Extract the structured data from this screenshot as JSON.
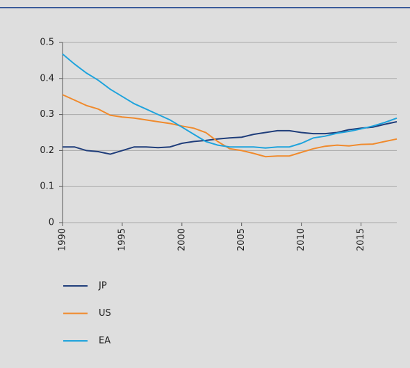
{
  "chart_data": {
    "type": "line",
    "x": [
      1990,
      1991,
      1992,
      1993,
      1994,
      1995,
      1996,
      1997,
      1998,
      1999,
      2000,
      2001,
      2002,
      2003,
      2004,
      2005,
      2006,
      2007,
      2008,
      2009,
      2010,
      2011,
      2012,
      2013,
      2014,
      2015,
      2016,
      2017,
      2018
    ],
    "series": [
      {
        "name": "JP",
        "color": "#1f3d7a",
        "values": [
          0.21,
          0.21,
          0.2,
          0.197,
          0.19,
          0.2,
          0.21,
          0.21,
          0.208,
          0.21,
          0.22,
          0.225,
          0.228,
          0.232,
          0.235,
          0.237,
          0.245,
          0.25,
          0.255,
          0.255,
          0.25,
          0.247,
          0.247,
          0.25,
          0.258,
          0.262,
          0.265,
          0.273,
          0.28
        ]
      },
      {
        "name": "US",
        "color": "#f08a2c",
        "values": [
          0.355,
          0.34,
          0.325,
          0.315,
          0.298,
          0.293,
          0.29,
          0.285,
          0.28,
          0.275,
          0.268,
          0.262,
          0.25,
          0.225,
          0.205,
          0.2,
          0.192,
          0.183,
          0.185,
          0.185,
          0.195,
          0.205,
          0.212,
          0.215,
          0.213,
          0.217,
          0.218,
          0.225,
          0.232
        ]
      },
      {
        "name": "EA",
        "color": "#1fa3dc",
        "values": [
          0.468,
          0.44,
          0.415,
          0.395,
          0.37,
          0.35,
          0.33,
          0.315,
          0.3,
          0.285,
          0.265,
          0.245,
          0.225,
          0.215,
          0.21,
          0.21,
          0.21,
          0.207,
          0.21,
          0.21,
          0.22,
          0.235,
          0.24,
          0.248,
          0.253,
          0.26,
          0.268,
          0.278,
          0.29
        ]
      }
    ],
    "xlim": [
      1990,
      2018
    ],
    "xticks": [
      1990,
      1995,
      2000,
      2005,
      2010,
      2015
    ],
    "ylim": [
      0,
      0.5
    ],
    "yticks": [
      0,
      0.1,
      0.2,
      0.3,
      0.4,
      0.5
    ],
    "grid": true
  }
}
